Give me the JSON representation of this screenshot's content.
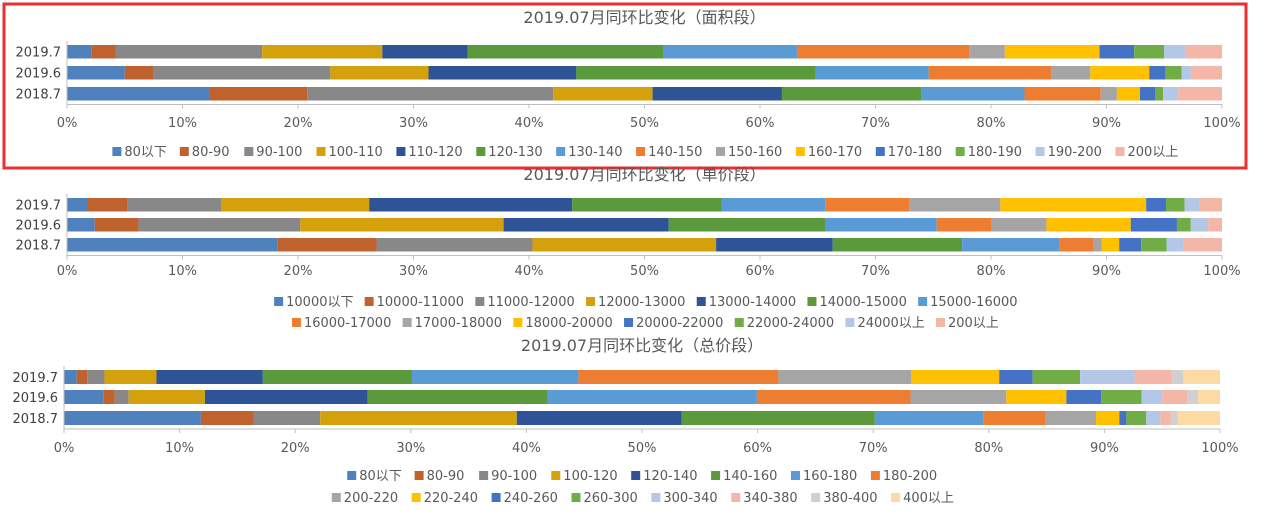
{
  "chart_data": [
    {
      "type": "bar",
      "orientation": "horizontal",
      "stacked": "percent",
      "title": "2019.07月同环比变化（面积段）",
      "categories": [
        "2019.7",
        "2019.6",
        "2018.7"
      ],
      "x_ticks": [
        "0%",
        "10%",
        "20%",
        "30%",
        "40%",
        "50%",
        "60%",
        "70%",
        "80%",
        "90%",
        "100%"
      ],
      "xlim": [
        0,
        100
      ],
      "grid": false,
      "legend": "bottom",
      "highlighted": true,
      "series": [
        {
          "name": "80以下",
          "color": "#4f81bd",
          "values": [
            2.1,
            5.0,
            12.3
          ]
        },
        {
          "name": "80-90",
          "color": "#c0622d",
          "values": [
            2.1,
            2.5,
            8.5
          ]
        },
        {
          "name": "90-100",
          "color": "#888888",
          "values": [
            12.7,
            15.3,
            21.3
          ]
        },
        {
          "name": "100-110",
          "color": "#d4a10c",
          "values": [
            10.4,
            8.5,
            8.6
          ]
        },
        {
          "name": "110-120",
          "color": "#2e5396",
          "values": [
            7.4,
            12.8,
            11.2
          ]
        },
        {
          "name": "120-130",
          "color": "#5b9a3c",
          "values": [
            16.9,
            20.7,
            12.1
          ]
        },
        {
          "name": "130-140",
          "color": "#5b9bd5",
          "values": [
            11.6,
            9.8,
            8.9
          ]
        },
        {
          "name": "140-150",
          "color": "#ed7d31",
          "values": [
            14.9,
            10.6,
            6.6
          ]
        },
        {
          "name": "150-160",
          "color": "#a5a5a5",
          "values": [
            3.1,
            3.4,
            1.4
          ]
        },
        {
          "name": "160-170",
          "color": "#ffc000",
          "values": [
            8.2,
            5.1,
            2.0
          ]
        },
        {
          "name": "170-180",
          "color": "#4472c4",
          "values": [
            3.0,
            1.4,
            1.3
          ]
        },
        {
          "name": "180-190",
          "color": "#70ad47",
          "values": [
            2.6,
            1.4,
            0.7
          ]
        },
        {
          "name": "190-200",
          "color": "#b4c7e7",
          "values": [
            1.8,
            0.8,
            1.3
          ]
        },
        {
          "name": "200以上",
          "color": "#f4b6a6",
          "values": [
            3.2,
            2.7,
            3.8
          ]
        }
      ]
    },
    {
      "type": "bar",
      "orientation": "horizontal",
      "stacked": "percent",
      "title": "2019.07月同环比变化（单价段）",
      "categories": [
        "2019.7",
        "2019.6",
        "2018.7"
      ],
      "x_ticks": [
        "0%",
        "10%",
        "20%",
        "30%",
        "40%",
        "50%",
        "60%",
        "70%",
        "80%",
        "90%",
        "100%"
      ],
      "xlim": [
        0,
        100
      ],
      "grid": false,
      "legend": "bottom",
      "series": [
        {
          "name": "10000以下",
          "color": "#4f81bd",
          "values": [
            1.8,
            2.4,
            18.2
          ]
        },
        {
          "name": "10000-11000",
          "color": "#c0622d",
          "values": [
            3.4,
            3.8,
            8.6
          ]
        },
        {
          "name": "11000-12000",
          "color": "#888888",
          "values": [
            8.0,
            14.0,
            13.5
          ]
        },
        {
          "name": "12000-13000",
          "color": "#d4a10c",
          "values": [
            12.7,
            17.6,
            15.9
          ]
        },
        {
          "name": "13000-14000",
          "color": "#2e5396",
          "values": [
            17.4,
            14.3,
            10.1
          ]
        },
        {
          "name": "14000-15000",
          "color": "#5b9a3c",
          "values": [
            12.8,
            13.6,
            11.2
          ]
        },
        {
          "name": "15000-16000",
          "color": "#5b9bd5",
          "values": [
            8.9,
            9.6,
            8.4
          ]
        },
        {
          "name": "16000-17000",
          "color": "#ed7d31",
          "values": [
            7.2,
            4.7,
            3.0
          ]
        },
        {
          "name": "17000-18000",
          "color": "#a5a5a5",
          "values": [
            7.8,
            4.8,
            0.7
          ]
        },
        {
          "name": "18000-20000",
          "color": "#ffc000",
          "values": [
            12.5,
            7.3,
            1.5
          ]
        },
        {
          "name": "20000-22000",
          "color": "#4472c4",
          "values": [
            1.7,
            4.0,
            1.9
          ]
        },
        {
          "name": "22000-24000",
          "color": "#70ad47",
          "values": [
            1.6,
            1.2,
            2.2
          ]
        },
        {
          "name": "24000以上",
          "color": "#b4c7e7",
          "values": [
            1.3,
            1.5,
            1.5
          ]
        },
        {
          "name": "200以上",
          "color": "#f4b6a6",
          "values": [
            1.9,
            1.2,
            3.3
          ]
        }
      ]
    },
    {
      "type": "bar",
      "orientation": "horizontal",
      "stacked": "percent",
      "title": "2019.07月同环比变化（总价段）",
      "categories": [
        "2019.7",
        "2019.6",
        "2018.7"
      ],
      "x_ticks": [
        "0%",
        "10%",
        "20%",
        "30%",
        "40%",
        "50%",
        "60%",
        "70%",
        "80%",
        "90%",
        "100%"
      ],
      "xlim": [
        0,
        100
      ],
      "grid": false,
      "legend": "bottom",
      "series": [
        {
          "name": "80以下",
          "color": "#4f81bd",
          "values": [
            1.1,
            3.4,
            11.7
          ]
        },
        {
          "name": "80-90",
          "color": "#c0622d",
          "values": [
            0.9,
            1.0,
            4.5
          ]
        },
        {
          "name": "90-100",
          "color": "#888888",
          "values": [
            1.5,
            1.2,
            5.7
          ]
        },
        {
          "name": "100-120",
          "color": "#d4a10c",
          "values": [
            4.5,
            6.6,
            16.8
          ]
        },
        {
          "name": "120-140",
          "color": "#2e5396",
          "values": [
            9.2,
            14.1,
            14.1
          ]
        },
        {
          "name": "140-160",
          "color": "#5b9a3c",
          "values": [
            12.9,
            15.6,
            16.5
          ]
        },
        {
          "name": "160-180",
          "color": "#5b9bd5",
          "values": [
            14.4,
            18.1,
            9.3
          ]
        },
        {
          "name": "180-200",
          "color": "#ed7d31",
          "values": [
            17.3,
            13.3,
            5.3
          ]
        },
        {
          "name": "200-220",
          "color": "#a5a5a5",
          "values": [
            11.5,
            8.3,
            4.3
          ]
        },
        {
          "name": "220-240",
          "color": "#ffc000",
          "values": [
            7.6,
            5.2,
            2.0
          ]
        },
        {
          "name": "240-260",
          "color": "#4472c4",
          "values": [
            2.9,
            3.0,
            0.6
          ]
        },
        {
          "name": "260-300",
          "color": "#70ad47",
          "values": [
            4.1,
            3.5,
            1.7
          ]
        },
        {
          "name": "300-340",
          "color": "#b4c7e7",
          "values": [
            4.7,
            1.8,
            1.2
          ]
        },
        {
          "name": "340-380",
          "color": "#f4b6a6",
          "values": [
            3.2,
            2.2,
            0.9
          ]
        },
        {
          "name": "380-400",
          "color": "#d0d0d0",
          "values": [
            1.0,
            0.9,
            0.6
          ]
        },
        {
          "name": "400以上",
          "color": "#fdd9a3",
          "values": [
            3.2,
            1.9,
            3.6
          ]
        }
      ]
    }
  ]
}
